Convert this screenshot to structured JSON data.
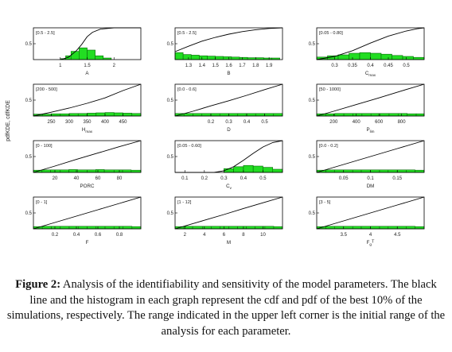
{
  "figure": {
    "y_axis_label": "pdfKDE, cdfKDE",
    "caption_label": "Figure 2:",
    "caption_text": " Analysis of the identifiability and sensitivity of the model parameters. The black line and the histogram in each graph represent the cdf and pdf of the best 10% of the simulations, respectively. The range indicated in the upper left corner is the initial range of the analysis for each parameter."
  },
  "chart_data": [
    {
      "type": "bar",
      "param": "A",
      "sub": "",
      "sup": "",
      "range_label": "[0.5 - 2.5]",
      "xlim": [
        0.5,
        2.5
      ],
      "ylim": [
        0,
        1
      ],
      "yticks": [
        0.5
      ],
      "xticks": [
        1,
        1.5,
        2
      ],
      "xtick_labels": [
        "1",
        "1.5",
        "2"
      ],
      "bins": [
        [
          1.0,
          1.1,
          0.03
        ],
        [
          1.1,
          1.2,
          0.12
        ],
        [
          1.2,
          1.35,
          0.26
        ],
        [
          1.35,
          1.5,
          0.37
        ],
        [
          1.5,
          1.65,
          0.3
        ],
        [
          1.65,
          1.8,
          0.12
        ],
        [
          1.8,
          1.95,
          0.05
        ]
      ],
      "cdf": [
        [
          1.0,
          0.0
        ],
        [
          1.15,
          0.07
        ],
        [
          1.3,
          0.28
        ],
        [
          1.4,
          0.48
        ],
        [
          1.5,
          0.72
        ],
        [
          1.6,
          0.86
        ],
        [
          1.75,
          0.96
        ],
        [
          2.0,
          1.0
        ],
        [
          2.5,
          1.0
        ]
      ]
    },
    {
      "type": "bar",
      "param": "B",
      "sub": "",
      "sup": "",
      "range_label": "[0.5 - 2.5]",
      "xlim": [
        1.2,
        2.0
      ],
      "ylim": [
        0,
        1
      ],
      "yticks": [
        0.5
      ],
      "xticks": [
        1.3,
        1.4,
        1.5,
        1.6,
        1.7,
        1.8,
        1.9
      ],
      "xtick_labels": [
        "1.3",
        "1.4",
        "1.5",
        "1.6",
        "1.7",
        "1.8",
        "1.9"
      ],
      "bins": [
        [
          1.2,
          1.26,
          0.22
        ],
        [
          1.26,
          1.32,
          0.16
        ],
        [
          1.32,
          1.38,
          0.14
        ],
        [
          1.38,
          1.44,
          0.12
        ],
        [
          1.44,
          1.5,
          0.11
        ],
        [
          1.5,
          1.56,
          0.1
        ],
        [
          1.56,
          1.62,
          0.09
        ],
        [
          1.62,
          1.68,
          0.08
        ],
        [
          1.68,
          1.74,
          0.07
        ],
        [
          1.74,
          1.8,
          0.06
        ],
        [
          1.8,
          1.86,
          0.06
        ],
        [
          1.86,
          1.92,
          0.05
        ],
        [
          1.92,
          1.98,
          0.05
        ]
      ],
      "cdf": [
        [
          1.2,
          0.25
        ],
        [
          1.3,
          0.42
        ],
        [
          1.4,
          0.58
        ],
        [
          1.5,
          0.7
        ],
        [
          1.6,
          0.8
        ],
        [
          1.7,
          0.88
        ],
        [
          1.8,
          0.94
        ],
        [
          1.9,
          0.98
        ],
        [
          2.0,
          1.0
        ]
      ]
    },
    {
      "type": "bar",
      "param": "C",
      "sub": "max",
      "sup": "",
      "range_label": "[0.05 - 0.80]",
      "xlim": [
        0.25,
        0.55
      ],
      "ylim": [
        0,
        1
      ],
      "yticks": [
        0.5
      ],
      "xticks": [
        0.3,
        0.35,
        0.4,
        0.45,
        0.5
      ],
      "xtick_labels": [
        "0.3",
        "0.35",
        "0.4",
        "0.45",
        "0.5"
      ],
      "bins": [
        [
          0.25,
          0.28,
          0.08
        ],
        [
          0.28,
          0.31,
          0.12
        ],
        [
          0.31,
          0.34,
          0.15
        ],
        [
          0.34,
          0.37,
          0.2
        ],
        [
          0.37,
          0.4,
          0.22
        ],
        [
          0.4,
          0.43,
          0.2
        ],
        [
          0.43,
          0.46,
          0.17
        ],
        [
          0.46,
          0.49,
          0.13
        ],
        [
          0.49,
          0.52,
          0.1
        ],
        [
          0.52,
          0.55,
          0.07
        ]
      ],
      "cdf": [
        [
          0.25,
          0.0
        ],
        [
          0.3,
          0.1
        ],
        [
          0.35,
          0.28
        ],
        [
          0.4,
          0.52
        ],
        [
          0.45,
          0.74
        ],
        [
          0.5,
          0.9
        ],
        [
          0.53,
          0.97
        ],
        [
          0.55,
          1.0
        ]
      ]
    },
    {
      "type": "bar",
      "param": "H",
      "sub": "max",
      "sup": "",
      "range_label": "[200 - 500]",
      "xlim": [
        200,
        500
      ],
      "ylim": [
        0,
        1
      ],
      "yticks": [
        0.5
      ],
      "xticks": [
        250,
        300,
        350,
        400,
        450
      ],
      "xtick_labels": [
        "250",
        "300",
        "350",
        "400",
        "450"
      ],
      "bins": [
        [
          200,
          225,
          0.06
        ],
        [
          225,
          250,
          0.06
        ],
        [
          250,
          275,
          0.07
        ],
        [
          275,
          300,
          0.07
        ],
        [
          300,
          325,
          0.08
        ],
        [
          325,
          350,
          0.08
        ],
        [
          350,
          375,
          0.09
        ],
        [
          375,
          400,
          0.1
        ],
        [
          400,
          425,
          0.11
        ],
        [
          425,
          450,
          0.1
        ],
        [
          450,
          475,
          0.09
        ],
        [
          475,
          500,
          0.08
        ]
      ],
      "cdf": [
        [
          200,
          0.0
        ],
        [
          250,
          0.12
        ],
        [
          300,
          0.25
        ],
        [
          350,
          0.4
        ],
        [
          400,
          0.57
        ],
        [
          450,
          0.8
        ],
        [
          500,
          1.0
        ]
      ]
    },
    {
      "type": "bar",
      "param": "D",
      "sub": "",
      "sup": "",
      "range_label": "[0.0 - 0.6]",
      "xlim": [
        0.0,
        0.6
      ],
      "ylim": [
        0,
        1
      ],
      "yticks": [
        0.5
      ],
      "xticks": [
        0.2,
        0.3,
        0.4,
        0.5
      ],
      "xtick_labels": [
        "0.2",
        "0.3",
        "0.4",
        "0.5"
      ],
      "bins": [
        [
          0.0,
          0.05,
          0.08
        ],
        [
          0.05,
          0.1,
          0.08
        ],
        [
          0.1,
          0.15,
          0.08
        ],
        [
          0.15,
          0.2,
          0.08
        ],
        [
          0.2,
          0.25,
          0.08
        ],
        [
          0.25,
          0.3,
          0.08
        ],
        [
          0.3,
          0.35,
          0.08
        ],
        [
          0.35,
          0.4,
          0.08
        ],
        [
          0.4,
          0.45,
          0.08
        ],
        [
          0.45,
          0.5,
          0.08
        ],
        [
          0.5,
          0.55,
          0.08
        ],
        [
          0.55,
          0.6,
          0.08
        ]
      ],
      "cdf": [
        [
          0.0,
          0.0
        ],
        [
          0.1,
          0.15
        ],
        [
          0.2,
          0.32
        ],
        [
          0.3,
          0.48
        ],
        [
          0.4,
          0.65
        ],
        [
          0.5,
          0.83
        ],
        [
          0.6,
          1.0
        ]
      ]
    },
    {
      "type": "bar",
      "param": "P",
      "sub": "lim",
      "sup": "",
      "range_label": "[50 - 1000]",
      "xlim": [
        50,
        1000
      ],
      "ylim": [
        0,
        1
      ],
      "yticks": [
        0.5
      ],
      "xticks": [
        200,
        400,
        600,
        800
      ],
      "xtick_labels": [
        "200",
        "400",
        "600",
        "800"
      ],
      "bins": [
        [
          50,
          130,
          0.07
        ],
        [
          130,
          210,
          0.07
        ],
        [
          210,
          290,
          0.08
        ],
        [
          290,
          370,
          0.08
        ],
        [
          370,
          450,
          0.08
        ],
        [
          450,
          530,
          0.08
        ],
        [
          530,
          610,
          0.08
        ],
        [
          610,
          690,
          0.08
        ],
        [
          690,
          770,
          0.08
        ],
        [
          770,
          850,
          0.08
        ],
        [
          850,
          930,
          0.07
        ],
        [
          930,
          1000,
          0.07
        ]
      ],
      "cdf": [
        [
          50,
          0.0
        ],
        [
          200,
          0.15
        ],
        [
          400,
          0.36
        ],
        [
          600,
          0.57
        ],
        [
          800,
          0.79
        ],
        [
          1000,
          1.0
        ]
      ]
    },
    {
      "type": "bar",
      "param": "PORC",
      "sub": "",
      "sup": "",
      "range_label": "[0 - 100]",
      "xlim": [
        0,
        100
      ],
      "ylim": [
        0,
        1
      ],
      "yticks": [
        0.5
      ],
      "xticks": [
        20,
        40,
        60,
        80
      ],
      "xtick_labels": [
        "20",
        "40",
        "60",
        "80"
      ],
      "bins": [
        [
          0,
          8,
          0.07
        ],
        [
          8,
          16,
          0.08
        ],
        [
          16,
          25,
          0.08
        ],
        [
          25,
          33,
          0.08
        ],
        [
          33,
          41,
          0.09
        ],
        [
          41,
          50,
          0.08
        ],
        [
          50,
          58,
          0.08
        ],
        [
          58,
          66,
          0.09
        ],
        [
          66,
          75,
          0.08
        ],
        [
          75,
          83,
          0.08
        ],
        [
          83,
          91,
          0.08
        ],
        [
          91,
          100,
          0.07
        ]
      ],
      "cdf": [
        [
          0,
          0.0
        ],
        [
          20,
          0.2
        ],
        [
          40,
          0.41
        ],
        [
          60,
          0.61
        ],
        [
          80,
          0.81
        ],
        [
          100,
          1.0
        ]
      ]
    },
    {
      "type": "bar",
      "param": "C",
      "sub": "v",
      "sup": "",
      "range_label": "[0.05 - 0.60]",
      "xlim": [
        0.05,
        0.6
      ],
      "ylim": [
        0,
        1
      ],
      "yticks": [
        0.5
      ],
      "xticks": [
        0.1,
        0.2,
        0.3,
        0.4,
        0.5
      ],
      "xtick_labels": [
        "0.1",
        "0.2",
        "0.3",
        "0.4",
        "0.5"
      ],
      "bins": [
        [
          0.3,
          0.35,
          0.12
        ],
        [
          0.35,
          0.4,
          0.18
        ],
        [
          0.4,
          0.45,
          0.22
        ],
        [
          0.45,
          0.5,
          0.2
        ],
        [
          0.5,
          0.55,
          0.16
        ],
        [
          0.55,
          0.6,
          0.1
        ]
      ],
      "cdf": [
        [
          0.05,
          0.0
        ],
        [
          0.25,
          0.0
        ],
        [
          0.3,
          0.05
        ],
        [
          0.35,
          0.18
        ],
        [
          0.4,
          0.38
        ],
        [
          0.45,
          0.6
        ],
        [
          0.5,
          0.8
        ],
        [
          0.55,
          0.94
        ],
        [
          0.6,
          1.0
        ]
      ]
    },
    {
      "type": "bar",
      "param": "DM",
      "sub": "",
      "sup": "",
      "range_label": "[0.0 - 0.2]",
      "xlim": [
        0.0,
        0.2
      ],
      "ylim": [
        0,
        1
      ],
      "yticks": [
        0.5
      ],
      "xticks": [
        0.05,
        0.1,
        0.15
      ],
      "xtick_labels": [
        "0.05",
        "0.1",
        "0.15"
      ],
      "bins": [
        [
          0.0,
          0.017,
          0.07
        ],
        [
          0.017,
          0.033,
          0.08
        ],
        [
          0.033,
          0.05,
          0.08
        ],
        [
          0.05,
          0.067,
          0.08
        ],
        [
          0.067,
          0.083,
          0.08
        ],
        [
          0.083,
          0.1,
          0.08
        ],
        [
          0.1,
          0.117,
          0.08
        ],
        [
          0.117,
          0.133,
          0.08
        ],
        [
          0.133,
          0.15,
          0.08
        ],
        [
          0.15,
          0.167,
          0.08
        ],
        [
          0.167,
          0.183,
          0.08
        ],
        [
          0.183,
          0.2,
          0.07
        ]
      ],
      "cdf": [
        [
          0.0,
          0.0
        ],
        [
          0.05,
          0.25
        ],
        [
          0.1,
          0.5
        ],
        [
          0.15,
          0.75
        ],
        [
          0.2,
          1.0
        ]
      ]
    },
    {
      "type": "bar",
      "param": "F",
      "sub": "",
      "sup": "",
      "range_label": "[0 - 1]",
      "xlim": [
        0,
        1
      ],
      "ylim": [
        0,
        1
      ],
      "yticks": [
        0.5
      ],
      "xticks": [
        0.2,
        0.4,
        0.6,
        0.8
      ],
      "xtick_labels": [
        "0.2",
        "0.4",
        "0.6",
        "0.8"
      ],
      "bins": [
        [
          0.0,
          0.083,
          0.07
        ],
        [
          0.083,
          0.167,
          0.08
        ],
        [
          0.167,
          0.25,
          0.08
        ],
        [
          0.25,
          0.333,
          0.08
        ],
        [
          0.333,
          0.417,
          0.08
        ],
        [
          0.417,
          0.5,
          0.08
        ],
        [
          0.5,
          0.583,
          0.08
        ],
        [
          0.583,
          0.667,
          0.08
        ],
        [
          0.667,
          0.75,
          0.08
        ],
        [
          0.75,
          0.833,
          0.08
        ],
        [
          0.833,
          0.917,
          0.08
        ],
        [
          0.917,
          1.0,
          0.07
        ]
      ],
      "cdf": [
        [
          0.0,
          0.0
        ],
        [
          0.2,
          0.2
        ],
        [
          0.4,
          0.4
        ],
        [
          0.6,
          0.6
        ],
        [
          0.8,
          0.8
        ],
        [
          1.0,
          1.0
        ]
      ]
    },
    {
      "type": "bar",
      "param": "M",
      "sub": "",
      "sup": "",
      "range_label": "[1 - 12]",
      "xlim": [
        1,
        12
      ],
      "ylim": [
        0,
        1
      ],
      "yticks": [
        0.5
      ],
      "xticks": [
        2,
        4,
        6,
        8,
        10
      ],
      "xtick_labels": [
        "2",
        "4",
        "6",
        "8",
        "10"
      ],
      "bins": [
        [
          1,
          1.9,
          0.07
        ],
        [
          1.9,
          2.8,
          0.08
        ],
        [
          2.8,
          3.8,
          0.08
        ],
        [
          3.8,
          4.7,
          0.08
        ],
        [
          4.7,
          5.6,
          0.08
        ],
        [
          5.6,
          6.5,
          0.08
        ],
        [
          6.5,
          7.4,
          0.08
        ],
        [
          7.4,
          8.3,
          0.08
        ],
        [
          8.3,
          9.2,
          0.08
        ],
        [
          9.2,
          10.2,
          0.08
        ],
        [
          10.2,
          11.1,
          0.08
        ],
        [
          11.1,
          12,
          0.07
        ]
      ],
      "cdf": [
        [
          1,
          0.0
        ],
        [
          4,
          0.27
        ],
        [
          6,
          0.45
        ],
        [
          8,
          0.64
        ],
        [
          10,
          0.82
        ],
        [
          12,
          1.0
        ]
      ]
    },
    {
      "type": "bar",
      "param": "F",
      "sub": "g",
      "sup": "T",
      "range_label": "[3 - 5]",
      "xlim": [
        3,
        5
      ],
      "ylim": [
        0,
        1
      ],
      "yticks": [
        0.5
      ],
      "xticks": [
        3.5,
        4,
        4.5
      ],
      "xtick_labels": [
        "3.5",
        "4",
        "4.5"
      ],
      "bins": [
        [
          3.0,
          3.17,
          0.07
        ],
        [
          3.17,
          3.33,
          0.08
        ],
        [
          3.33,
          3.5,
          0.08
        ],
        [
          3.5,
          3.67,
          0.08
        ],
        [
          3.67,
          3.83,
          0.08
        ],
        [
          3.83,
          4.0,
          0.08
        ],
        [
          4.0,
          4.17,
          0.08
        ],
        [
          4.17,
          4.33,
          0.08
        ],
        [
          4.33,
          4.5,
          0.08
        ],
        [
          4.5,
          4.67,
          0.08
        ],
        [
          4.67,
          4.83,
          0.08
        ],
        [
          4.83,
          5.0,
          0.07
        ]
      ],
      "cdf": [
        [
          3.0,
          0.0
        ],
        [
          3.5,
          0.25
        ],
        [
          4.0,
          0.5
        ],
        [
          4.5,
          0.75
        ],
        [
          5.0,
          1.0
        ]
      ]
    }
  ]
}
